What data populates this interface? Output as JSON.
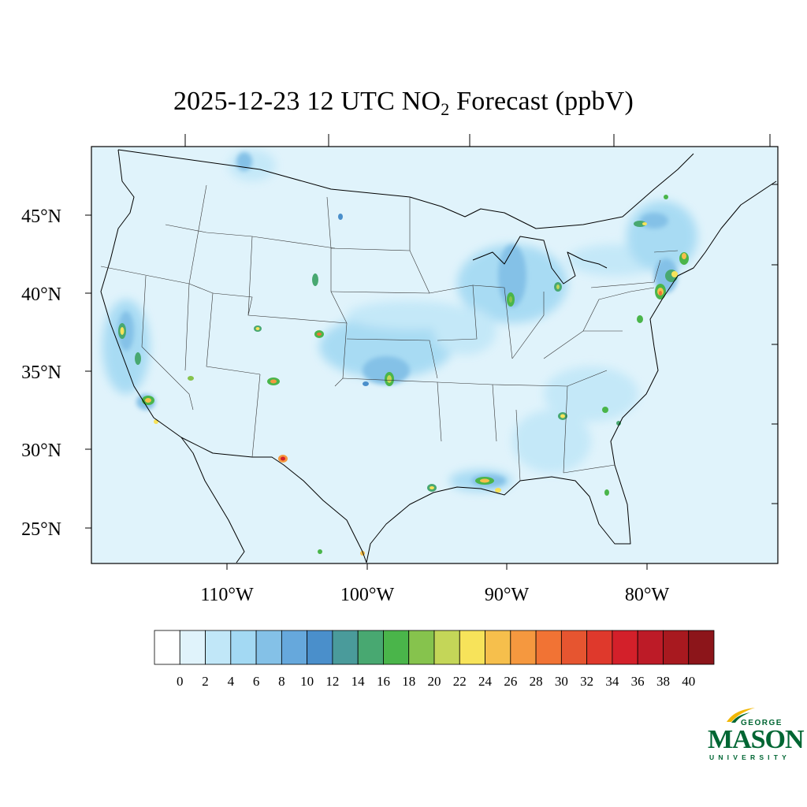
{
  "title": {
    "prefix": "2025-12-23 12 UTC NO",
    "subscript": "2",
    "suffix": " Forecast (ppbV)"
  },
  "map": {
    "projection": "Lambert Conformal",
    "region": "Contiguous United States",
    "lat_labels": [
      "45°N",
      "40°N",
      "35°N",
      "30°N",
      "25°N"
    ],
    "lon_labels": [
      "110°W",
      "100°W",
      "90°W",
      "80°W"
    ],
    "background_color": "#e0f3fb",
    "hotspots": [
      "Los Angeles",
      "San Francisco Bay Area",
      "Phoenix",
      "Denver",
      "Salt Lake City",
      "Oklahoma City",
      "Dallas",
      "Houston",
      "New Orleans",
      "Chicago",
      "Detroit",
      "Atlanta",
      "New York City",
      "Boston",
      "Washington DC",
      "El Paso"
    ]
  },
  "colorbar": {
    "tick_labels": [
      "0",
      "2",
      "4",
      "6",
      "8",
      "10",
      "12",
      "14",
      "16",
      "18",
      "20",
      "22",
      "24",
      "26",
      "28",
      "30",
      "32",
      "34",
      "36",
      "38",
      "40"
    ],
    "colors": [
      "#ffffff",
      "#e0f3fb",
      "#c1e7f8",
      "#a3d9f3",
      "#84c1e7",
      "#66a8dc",
      "#4a8fcb",
      "#4a9b9b",
      "#48a871",
      "#4ab54a",
      "#86c34d",
      "#c4d658",
      "#f7e35a",
      "#f6bf4c",
      "#f5983f",
      "#f17334",
      "#e65530",
      "#df392c",
      "#d3202a",
      "#bd1b27",
      "#a8191f",
      "#8c151a"
    ]
  },
  "logo": {
    "line1": "GEORGE",
    "line2": "MASON",
    "line3": "UNIVERSITY",
    "color": "#006633",
    "accent": "#f2b705"
  }
}
